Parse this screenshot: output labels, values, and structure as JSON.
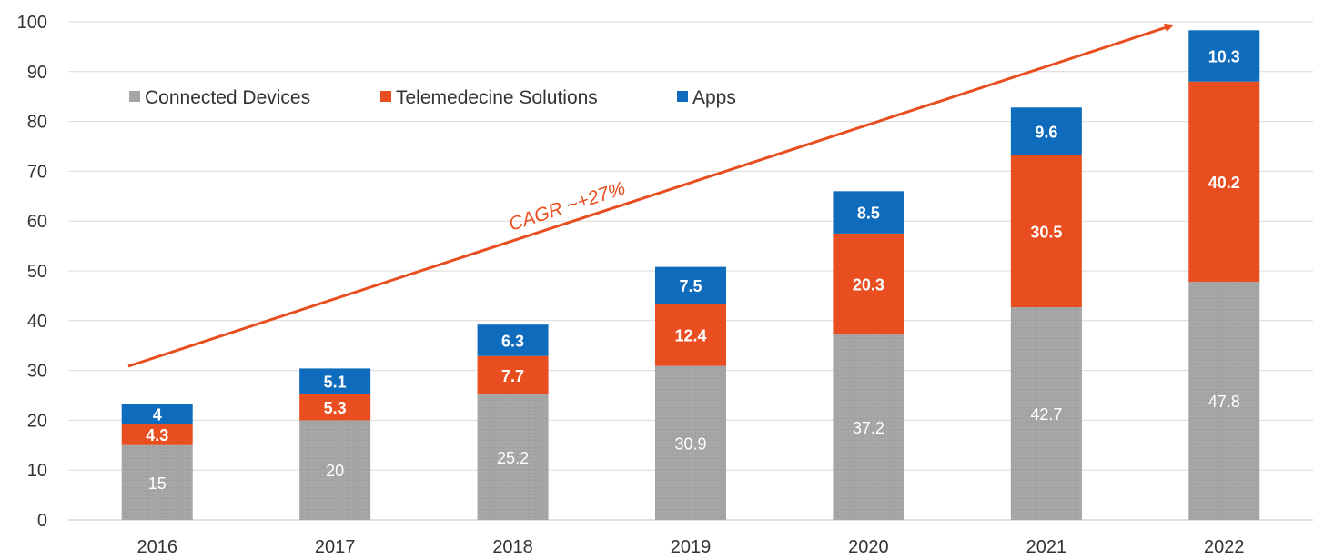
{
  "chart_data": {
    "type": "bar",
    "stacked": true,
    "categories": [
      "2016",
      "2017",
      "2018",
      "2019",
      "2020",
      "2021",
      "2022"
    ],
    "series": [
      {
        "name": "Connected Devices",
        "color": "#a5a5a5",
        "values": [
          15,
          20,
          25.2,
          30.9,
          37.2,
          42.7,
          47.8
        ]
      },
      {
        "name": "Telemedecine Solutions",
        "color": "#e84e1f",
        "values": [
          4.3,
          5.3,
          7.7,
          12.4,
          20.3,
          30.5,
          40.2
        ]
      },
      {
        "name": "Apps",
        "color": "#0f6cbd",
        "values": [
          4,
          5.1,
          6.3,
          7.5,
          8.5,
          9.6,
          10.3
        ]
      }
    ],
    "ylim": [
      0,
      100
    ],
    "yticks": [
      0,
      10,
      20,
      30,
      40,
      50,
      60,
      70,
      80,
      90,
      100
    ],
    "grid": true,
    "legend_position": "top-left",
    "annotation": {
      "text": "CAGR ~+27%",
      "color": "#e84e1f"
    }
  }
}
